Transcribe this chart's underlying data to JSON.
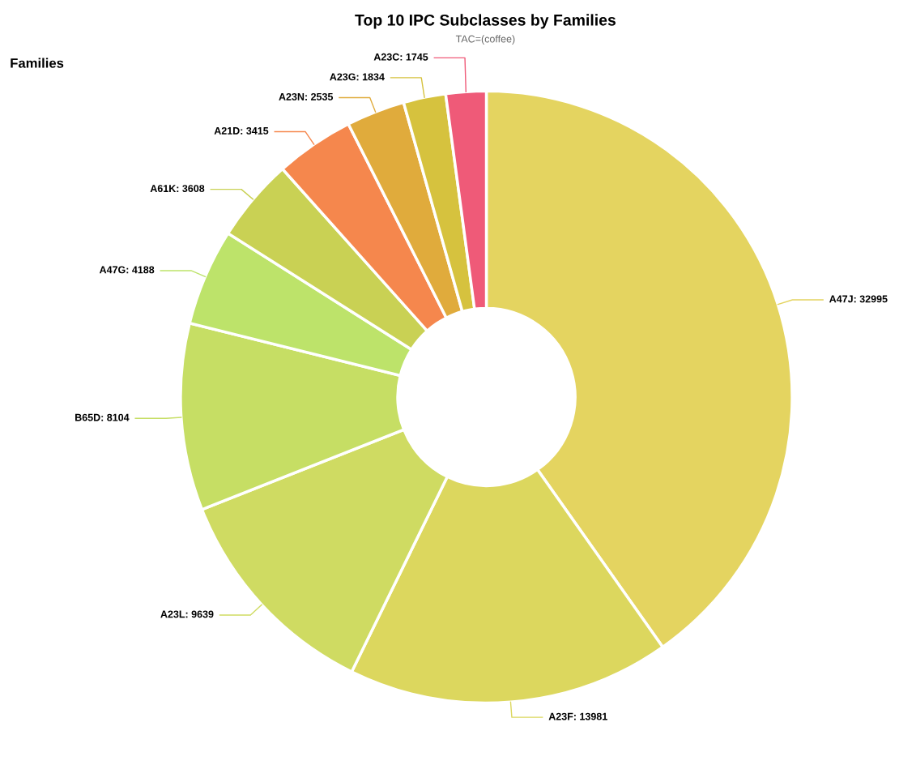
{
  "chart_data": {
    "type": "donut",
    "title": "Top 10 IPC Subclasses by Families",
    "subtitle": "TAC=(coffee)",
    "annotations": [
      "Families"
    ],
    "categories": [
      "A47J",
      "A23F",
      "A23L",
      "B65D",
      "A47G",
      "A61K",
      "A21D",
      "A23N",
      "A23G",
      "A23C"
    ],
    "values": [
      32995,
      13981,
      9639,
      8104,
      4188,
      3608,
      3415,
      2535,
      1834,
      1745
    ],
    "colors": [
      "#e4d460",
      "#dcd75e",
      "#cfdb62",
      "#c6de64",
      "#bde36a",
      "#c9d154",
      "#f5874d",
      "#e0ab3c",
      "#d6c23e",
      "#ef5a78"
    ],
    "value_labels": [
      ": 32995",
      ": 13981",
      ": 9639",
      ": 8104",
      ": 4188",
      ": 3608",
      ": 3415",
      ": 2535",
      ": 1834",
      ": 1745"
    ],
    "legend": false
  }
}
